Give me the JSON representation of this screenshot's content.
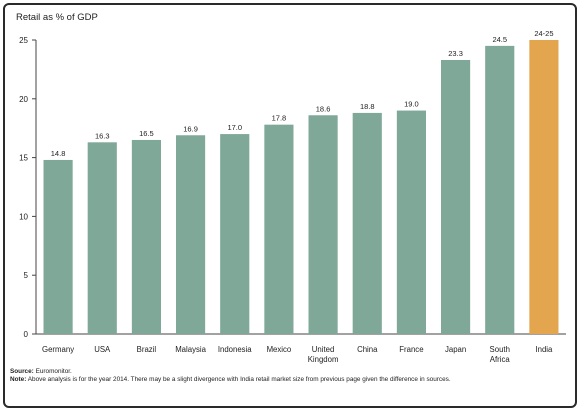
{
  "chart_data": {
    "type": "bar",
    "title": "Retail as % of GDP",
    "xlabel": "",
    "ylabel": "",
    "ylim": [
      0,
      25
    ],
    "yticks": [
      "0",
      "5",
      "10",
      "15",
      "20",
      "25"
    ],
    "grid": false,
    "categories": [
      "Germany",
      "USA",
      "Brazil",
      "Malaysia",
      "Indonesia",
      "Mexico",
      "United Kingdom",
      "China",
      "France",
      "Japan",
      "South Africa",
      "India"
    ],
    "category_lines": [
      [
        "Germany"
      ],
      [
        "USA"
      ],
      [
        "Brazil"
      ],
      [
        "Malaysia"
      ],
      [
        "Indonesia"
      ],
      [
        "Mexico"
      ],
      [
        "United",
        "Kingdom"
      ],
      [
        "China"
      ],
      [
        "France"
      ],
      [
        "Japan"
      ],
      [
        "South",
        "Africa"
      ],
      [
        "India"
      ]
    ],
    "values": [
      14.8,
      16.3,
      16.5,
      16.9,
      17.0,
      17.8,
      18.6,
      18.8,
      19.0,
      23.3,
      24.5,
      25
    ],
    "data_labels": [
      "14.8",
      "16.3",
      "16.5",
      "16.9",
      "17.0",
      "17.8",
      "18.6",
      "18.8",
      "19.0",
      "23.3",
      "24.5",
      "24-25"
    ],
    "colors": {
      "default": "#7fa898",
      "highlight": "#e3a64f",
      "highlight_category": "India"
    }
  },
  "footnotes": {
    "source_label": "Source:",
    "source_text": " Euromonitor.",
    "note_label": "Note:",
    "note_text": " Above analysis is for the year 2014. There may be a slight divergence with India retail market size from previous page given the difference in sources."
  }
}
